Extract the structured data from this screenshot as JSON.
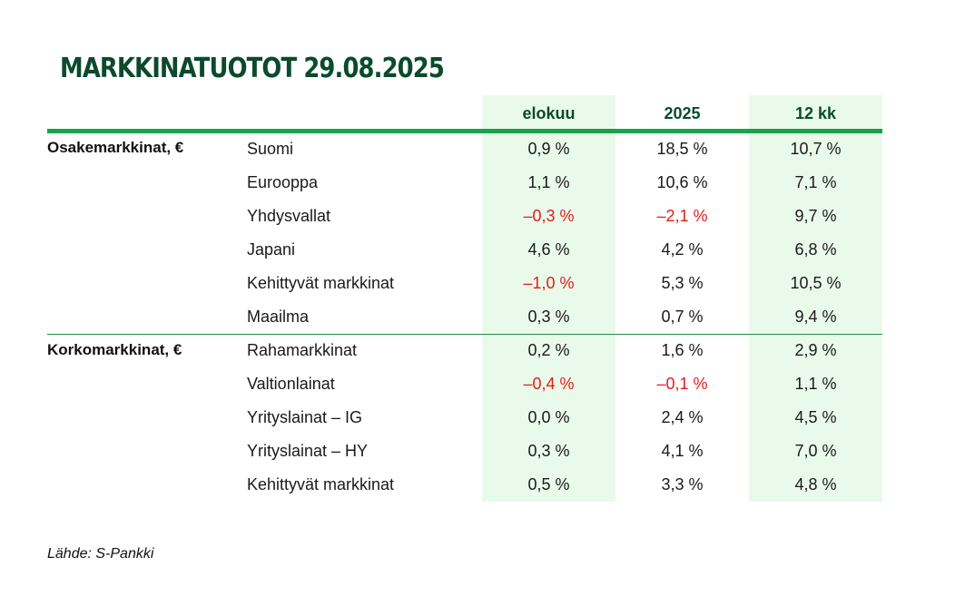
{
  "title": "MARKKINATUOTOT 29.08.2025",
  "columns": [
    "elokuu",
    "2025",
    "12 kk"
  ],
  "groups": [
    {
      "label": "Osakemarkkinat, €",
      "rows": [
        {
          "name": "Suomi",
          "values": [
            "0,9 %",
            "18,5 %",
            "10,7 %"
          ]
        },
        {
          "name": "Eurooppa",
          "values": [
            "1,1 %",
            "10,6 %",
            "7,1 %"
          ]
        },
        {
          "name": "Yhdysvallat",
          "values": [
            "–0,3 %",
            "–2,1 %",
            "9,7 %"
          ]
        },
        {
          "name": "Japani",
          "values": [
            "4,6 %",
            "4,2 %",
            "6,8 %"
          ]
        },
        {
          "name": "Kehittyvät markkinat",
          "values": [
            "–1,0 %",
            "5,3 %",
            "10,5 %"
          ]
        },
        {
          "name": "Maailma",
          "values": [
            "0,3 %",
            "0,7 %",
            "9,4 %"
          ]
        }
      ]
    },
    {
      "label": "Korkomarkkinat, €",
      "rows": [
        {
          "name": "Rahamarkkinat",
          "values": [
            "0,2 %",
            "1,6 %",
            "2,9 %"
          ]
        },
        {
          "name": "Valtionlainat",
          "values": [
            "–0,4 %",
            "–0,1 %",
            "1,1 %"
          ]
        },
        {
          "name": "Yrityslainat – IG",
          "values": [
            "0,0 %",
            "2,4 %",
            "4,5 %"
          ]
        },
        {
          "name": "Yrityslainat – HY",
          "values": [
            "0,3 %",
            "4,1 %",
            "7,0 %"
          ]
        },
        {
          "name": "Kehittyvät markkinat",
          "values": [
            "0,5 %",
            "3,3 %",
            "4,8 %"
          ]
        }
      ]
    }
  ],
  "source": "Lähde: S-Pankki",
  "colors": {
    "title": "#0b4a2c",
    "accent_rule": "#16a34a",
    "column_shade": "#eafaea",
    "negative": "#e11d1d"
  }
}
